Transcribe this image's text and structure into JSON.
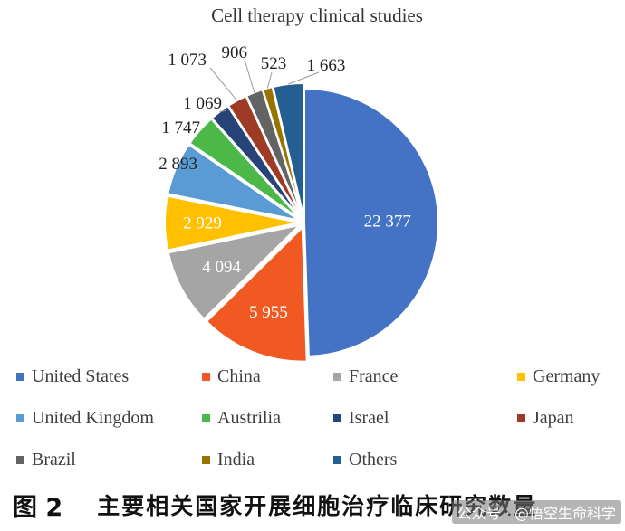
{
  "chart_data": {
    "type": "pie",
    "title": "Cell therapy clinical studies",
    "categories": [
      "United States",
      "China",
      "France",
      "Germany",
      "United Kingdom",
      "Austrilia",
      "Israel",
      "Japan",
      "Brazil",
      "India",
      "Others"
    ],
    "values": [
      22377,
      5955,
      4094,
      2929,
      2893,
      1747,
      1069,
      1073,
      906,
      523,
      1663
    ],
    "value_labels": [
      "22 377",
      "5 955",
      "4 094",
      "2 929",
      "2 893",
      "1 747",
      "1 069",
      "1 073",
      "906",
      "523",
      "1 663"
    ],
    "colors": [
      "#4472C4",
      "#F05A22",
      "#A5A5A5",
      "#FFC000",
      "#5B9BD5",
      "#4CB848",
      "#264478",
      "#9E3B24",
      "#636363",
      "#997300",
      "#255E91"
    ],
    "start_angle_deg": 0,
    "direction": "clockwise",
    "legend_position": "bottom",
    "label_text_colors": [
      "#ffffff",
      "#ffffff",
      "#ffffff",
      "#ffffff",
      "#222222",
      "#222222",
      "#222222",
      "#222222",
      "#222222",
      "#222222",
      "#222222"
    ]
  },
  "caption": {
    "figure_number": "图 2",
    "text": "主要相关国家开展细胞治疗临床研究数量"
  },
  "watermark": "公众号 · @悟空生命科学"
}
